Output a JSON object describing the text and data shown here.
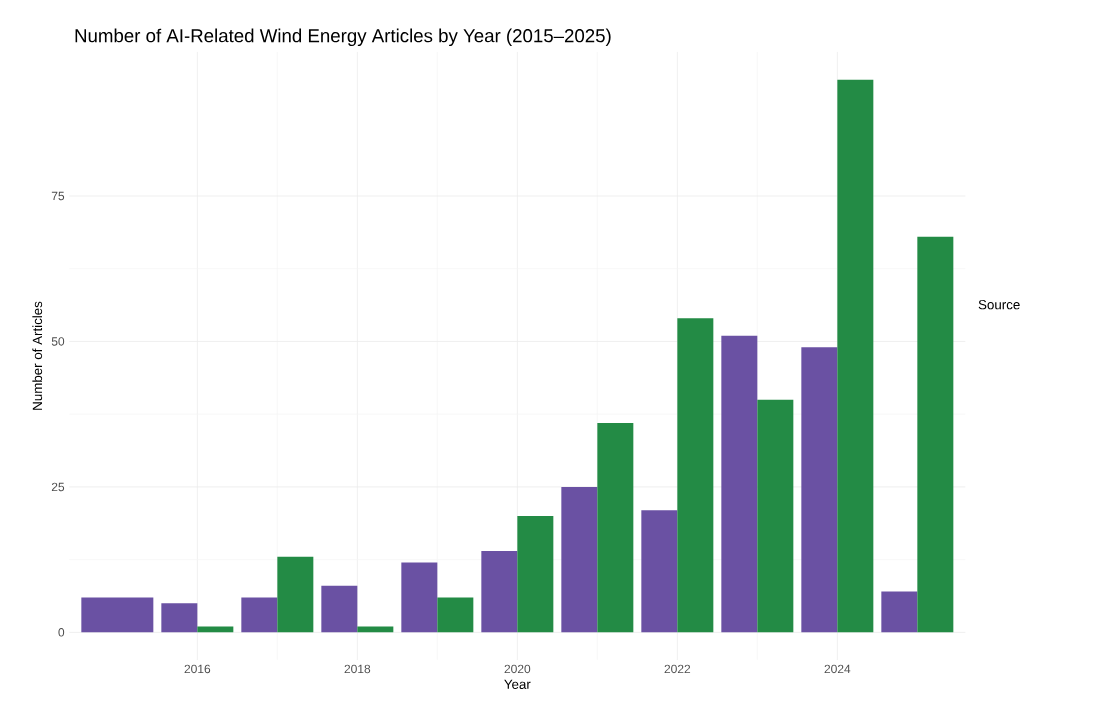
{
  "chart_data": {
    "type": "bar",
    "title": "Number of AI-Related Wind Energy Articles by Year (2015–2025)",
    "xlabel": "Year",
    "ylabel": "Number of Articles",
    "legend_title": "Source",
    "x": [
      2015,
      2016,
      2017,
      2018,
      2019,
      2020,
      2021,
      2022,
      2023,
      2024,
      2025
    ],
    "series": [
      {
        "color": "#6a51a3",
        "values": [
          6,
          5,
          6,
          8,
          12,
          14,
          25,
          21,
          51,
          49,
          7
        ]
      },
      {
        "color": "#238b45",
        "values": [
          null,
          1,
          13,
          1,
          6,
          20,
          36,
          54,
          40,
          95,
          68
        ]
      }
    ],
    "xlim": [
      2014.4,
      2025.6
    ],
    "xticks": [
      2016,
      2018,
      2020,
      2022,
      2024
    ],
    "ylim": [
      -4.75,
      99.75
    ],
    "yticks": [
      0,
      25,
      50,
      75
    ],
    "grid": true
  }
}
